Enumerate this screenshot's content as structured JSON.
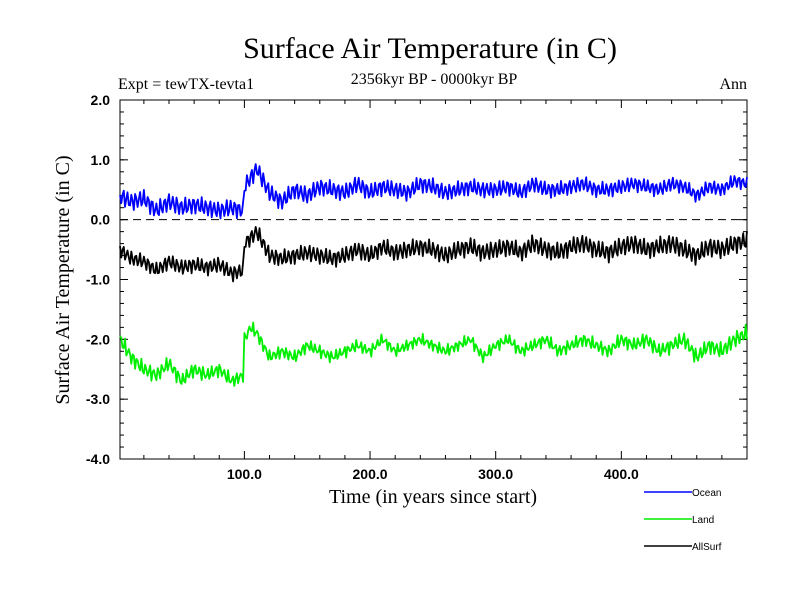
{
  "chart_data": {
    "type": "line",
    "title": "Surface Air Temperature (in C)",
    "subtitle": "2356kyr BP - 0000kyr BP",
    "experiment_label": "Expt = tewTX-tevta1",
    "season_label": "Ann",
    "xlabel": "Time (in years since start)",
    "ylabel": "Surface Air Temperature (in C)",
    "xlim": [
      1,
      500
    ],
    "ylim": [
      -4.0,
      2.0
    ],
    "x_ticks": [
      100,
      200,
      300,
      400
    ],
    "x_tick_labels": [
      "100.0",
      "200.0",
      "300.0",
      "400.0"
    ],
    "y_ticks": [
      -4,
      -3,
      -2,
      -1,
      0,
      1,
      2
    ],
    "y_tick_labels": [
      "-4.0",
      "-3.0",
      "-2.0",
      "-1.0",
      "0.0",
      "1.0",
      "2.0"
    ],
    "reference_line": {
      "y": 0.0,
      "style": "dashed"
    },
    "legend_position": "bottom-right",
    "series": [
      {
        "name": "Ocean",
        "color": "#0000ff",
        "x": [
          1,
          10,
          20,
          30,
          40,
          50,
          60,
          70,
          80,
          90,
          99,
          100,
          105,
          110,
          120,
          130,
          140,
          150,
          160,
          170,
          180,
          190,
          200,
          210,
          220,
          230,
          240,
          250,
          260,
          270,
          280,
          290,
          300,
          310,
          320,
          330,
          340,
          350,
          360,
          370,
          380,
          390,
          400,
          410,
          420,
          430,
          440,
          450,
          460,
          470,
          480,
          490,
          500
        ],
        "values": [
          0.4,
          0.3,
          0.35,
          0.15,
          0.3,
          0.2,
          0.25,
          0.2,
          0.15,
          0.2,
          0.15,
          0.55,
          0.7,
          0.85,
          0.45,
          0.3,
          0.5,
          0.4,
          0.55,
          0.5,
          0.45,
          0.6,
          0.45,
          0.55,
          0.5,
          0.45,
          0.6,
          0.55,
          0.45,
          0.5,
          0.55,
          0.5,
          0.5,
          0.55,
          0.45,
          0.6,
          0.5,
          0.5,
          0.55,
          0.6,
          0.5,
          0.5,
          0.55,
          0.6,
          0.55,
          0.5,
          0.6,
          0.55,
          0.4,
          0.55,
          0.5,
          0.65,
          0.6
        ]
      },
      {
        "name": "Land",
        "color": "#00ee00",
        "x": [
          1,
          10,
          20,
          30,
          40,
          50,
          60,
          70,
          80,
          90,
          99,
          100,
          105,
          110,
          120,
          130,
          140,
          150,
          160,
          170,
          180,
          190,
          200,
          210,
          220,
          230,
          240,
          250,
          260,
          270,
          280,
          290,
          300,
          310,
          320,
          330,
          340,
          350,
          360,
          370,
          380,
          390,
          400,
          410,
          420,
          430,
          440,
          450,
          460,
          470,
          480,
          490,
          500
        ],
        "values": [
          -2.0,
          -2.3,
          -2.5,
          -2.6,
          -2.4,
          -2.7,
          -2.5,
          -2.6,
          -2.5,
          -2.7,
          -2.6,
          -2.0,
          -1.8,
          -1.9,
          -2.3,
          -2.2,
          -2.3,
          -2.1,
          -2.2,
          -2.3,
          -2.2,
          -2.1,
          -2.2,
          -2.0,
          -2.2,
          -2.1,
          -2.0,
          -2.1,
          -2.2,
          -2.1,
          -2.0,
          -2.3,
          -2.1,
          -2.0,
          -2.2,
          -2.1,
          -2.0,
          -2.2,
          -2.1,
          -2.0,
          -2.1,
          -2.2,
          -2.0,
          -2.1,
          -2.0,
          -2.2,
          -2.1,
          -2.0,
          -2.3,
          -2.1,
          -2.2,
          -2.0,
          -1.9
        ]
      },
      {
        "name": "AllSurf",
        "color": "#000000",
        "x": [
          1,
          10,
          20,
          30,
          40,
          50,
          60,
          70,
          80,
          90,
          99,
          100,
          105,
          110,
          120,
          130,
          140,
          150,
          160,
          170,
          180,
          190,
          200,
          210,
          220,
          230,
          240,
          250,
          260,
          270,
          280,
          290,
          300,
          310,
          320,
          330,
          340,
          350,
          360,
          370,
          380,
          390,
          400,
          410,
          420,
          430,
          440,
          450,
          460,
          470,
          480,
          490,
          500
        ],
        "values": [
          -0.5,
          -0.65,
          -0.7,
          -0.85,
          -0.7,
          -0.8,
          -0.75,
          -0.8,
          -0.75,
          -0.9,
          -0.85,
          -0.4,
          -0.3,
          -0.2,
          -0.6,
          -0.65,
          -0.6,
          -0.55,
          -0.6,
          -0.65,
          -0.6,
          -0.5,
          -0.6,
          -0.45,
          -0.55,
          -0.5,
          -0.45,
          -0.5,
          -0.6,
          -0.5,
          -0.45,
          -0.55,
          -0.5,
          -0.45,
          -0.55,
          -0.4,
          -0.5,
          -0.55,
          -0.45,
          -0.4,
          -0.5,
          -0.55,
          -0.45,
          -0.4,
          -0.5,
          -0.45,
          -0.4,
          -0.5,
          -0.6,
          -0.45,
          -0.5,
          -0.4,
          -0.35
        ]
      }
    ]
  }
}
